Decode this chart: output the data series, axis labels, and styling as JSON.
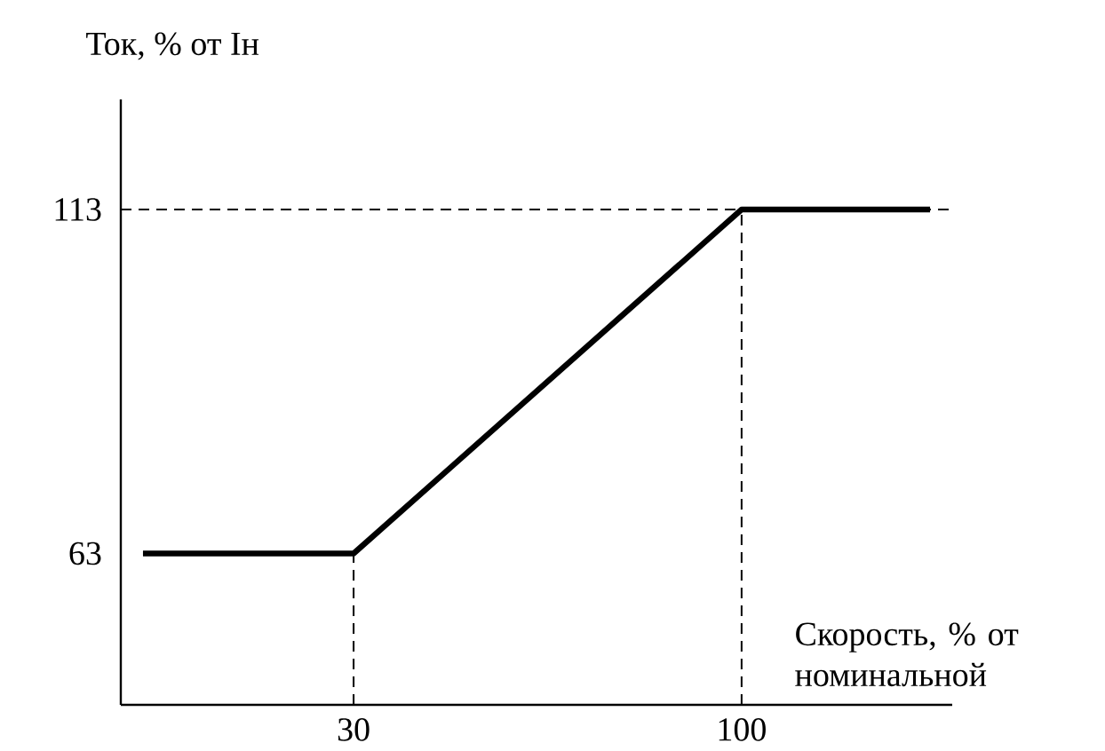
{
  "chart_data": {
    "type": "line",
    "xlabel": "Скорость, % от номинальной",
    "ylabel": "Ток, % от Iн",
    "x": [
      -8,
      30,
      100,
      134
    ],
    "values": [
      63,
      63,
      113,
      113
    ],
    "color": "#000000",
    "xlim": [
      -12,
      138
    ],
    "ylim": [
      41,
      129
    ],
    "xticks": [
      30,
      100
    ],
    "yticks": [
      63,
      113
    ],
    "ref_lines": [
      {
        "axis": "y",
        "value": 113,
        "line_style": "dashed"
      },
      {
        "axis": "x",
        "value": 30,
        "line_style": "dashed"
      },
      {
        "axis": "x",
        "value": 100,
        "line_style": "dashed"
      }
    ]
  }
}
